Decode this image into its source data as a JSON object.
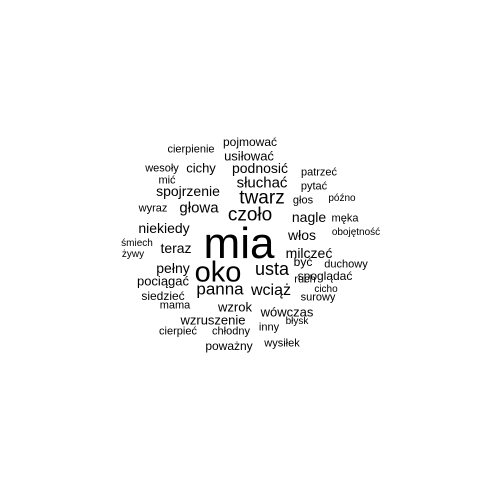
{
  "cloud": {
    "text_color": "#000000",
    "background": "#ffffff",
    "words": [
      "mia",
      "oko",
      "czoło",
      "twarz",
      "usta",
      "panna",
      "wciąż",
      "głowa",
      "spojrzenie",
      "słuchać",
      "niekiedy",
      "podnosić",
      "nagle",
      "milczeć",
      "teraz",
      "włos",
      "pełny",
      "wzrok",
      "wówczas",
      "wzruszenie",
      "usiłować",
      "cichy",
      "pociągać",
      "spoglądać",
      "siedzieć",
      "być",
      "pojmować",
      "cierpienie",
      "wesoły",
      "patrzeć",
      "pytać",
      "mić",
      "głos",
      "późno",
      "wyraz",
      "męka",
      "śmiech",
      "żywy",
      "obojętność",
      "duchowy",
      "ruch",
      "cicho",
      "surowy",
      "mama",
      "chłodny",
      "inny",
      "błysk",
      "cierpieć",
      "poważny",
      "wysiłek"
    ]
  }
}
